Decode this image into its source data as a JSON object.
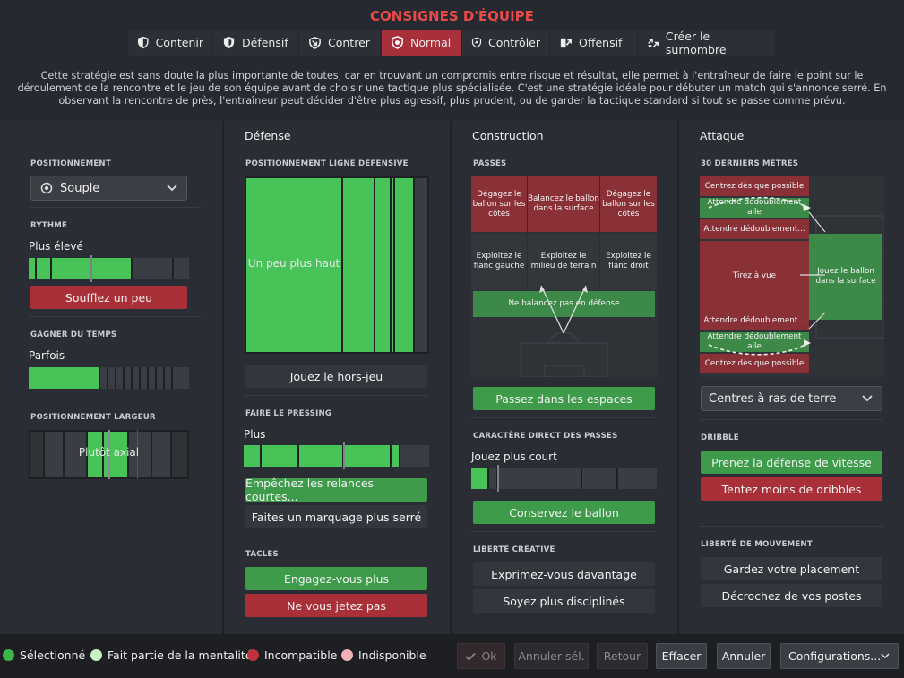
{
  "title": "CONSIGNES D'ÉQUIPE",
  "tabs": [
    {
      "label": "Contenir",
      "icon": "shield-half-icon"
    },
    {
      "label": "Défensif",
      "icon": "shield-icon"
    },
    {
      "label": "Contrer",
      "icon": "counter-arrow-icon"
    },
    {
      "label": "Normal",
      "icon": "balanced-icon"
    },
    {
      "label": "Contrôler",
      "icon": "control-icon"
    },
    {
      "label": "Offensif",
      "icon": "attack-arrow-icon"
    },
    {
      "label": "Créer le surnombre",
      "icon": "overload-icon"
    }
  ],
  "description": "Cette stratégie est sans doute la plus importante de toutes, car en trouvant un compromis entre risque et résultat, elle permet à l'entraîneur de faire le point sur le déroulement de la rencontre et le jeu de son équipe avant de choisir une tactique plus spécialisée. C'est une stratégie idéale pour débuter un match qui s'annonce serré. En observant la rencontre de près, l'entraîneur peut décider d'être plus agressif, plus prudent, ou de garder la tactique standard si tout se passe comme prévu.",
  "left": {
    "positioning_title": "POSITIONNEMENT",
    "positioning_value": "Souple",
    "tempo_title": "RYTHME",
    "tempo_value": "Plus élevé",
    "tempo_level": 0.5,
    "tempo_button": "Soufflez un peu",
    "timewasting_title": "GAGNER DU TEMPS",
    "timewasting_value": "Parfois",
    "timewasting_level": 0.45,
    "width_title": "POSITIONNEMENT LARGEUR",
    "width_value": "Plutôt axial"
  },
  "defense": {
    "header": "Défense",
    "line_title": "POSITIONNEMENT LIGNE DÉFENSIVE",
    "line_value": "Un peu plus haut",
    "offside_button": "Jouez le hors-jeu",
    "press_title": "FAIRE LE PRESSING",
    "press_value": "Plus",
    "press_level": 0.66,
    "press_btn1": "Empêchez les relances courtes...",
    "press_btn2": "Faites un marquage plus serré",
    "tackle_title": "TACLES",
    "tackle_btn1": "Engagez-vous plus",
    "tackle_btn2": "Ne vous jetez pas"
  },
  "build": {
    "header": "Construction",
    "passes_title": "PASSES",
    "cells": {
      "clear_left": "Dégagez le ballon sur les côtés",
      "clear_center": "Balancez le ballon dans la surface",
      "clear_right": "Dégagez le ballon sur les côtés",
      "flank_left": "Exploitez le flanc gauche",
      "middle": "Exploitez le milieu de terrain",
      "flank_right": "Exploitez le flanc droit",
      "no_long": "Ne balancez pas en défense"
    },
    "space_button": "Passez dans les espaces",
    "direct_title": "CARACTÈRE DIRECT DES PASSES",
    "direct_value": "Jouez plus court",
    "direct_level": 0.1,
    "keep_button": "Conservez le ballon",
    "creative_title": "LIBERTÉ CRÉATIVE",
    "creative_btn1": "Exprimez-vous davantage",
    "creative_btn2": "Soyez plus disciplinés"
  },
  "attack": {
    "header": "Attaque",
    "final_title": "30 DERNIERS MÈTRES",
    "cells": {
      "cross_early_top": "Centrez dès que possible",
      "overlap_top": "Attendre dédoublement aile",
      "wait_top": "Attendre dédoublement...",
      "shoot": "Tirez à vue",
      "into_box": "Jouez le ballon dans la surface",
      "wait_bottom": "Attendre dédoublement...",
      "overlap_bottom": "Attendre dédoublement aile",
      "cross_early_bottom": "Centrez dès que possible"
    },
    "cross_value": "Centres à ras de terre",
    "dribble_title": "DRIBBLE",
    "dribble_btn1": "Prenez la défense de vitesse",
    "dribble_btn2": "Tentez moins de dribbles",
    "movement_title": "LIBERTÉ DE MOUVEMENT",
    "movement_btn1": "Gardez votre placement",
    "movement_btn2": "Décrochez de vos postes"
  },
  "legend": {
    "selected": "Sélectionné",
    "mentality": "Fait partie de la mentalité",
    "incompatible": "Incompatible",
    "unavailable": "Indisponible"
  },
  "footer": {
    "ok": "Ok",
    "cancel_sel": "Annuler sél.",
    "back": "Retour",
    "clear": "Effacer",
    "cancel": "Annuler",
    "configs": "Configurations..."
  },
  "colors": {
    "selected": "#3db54a",
    "mentality": "#c9f2c4",
    "incompatible": "#c0323c",
    "unavailable": "#f2b1b6",
    "accent": "#e84a4a"
  }
}
